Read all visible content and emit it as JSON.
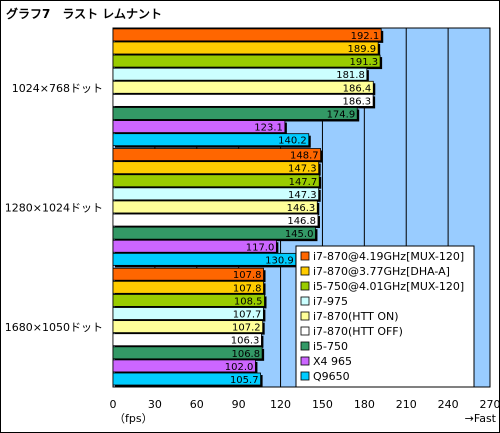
{
  "chart_data": {
    "type": "bar",
    "orientation": "horizontal",
    "title": "グラフ7　ラスト レムナント",
    "categories": [
      "1024×768ドット",
      "1280×1024ドット",
      "1680×1050ドット"
    ],
    "series": [
      {
        "name": "i7-870@4.19GHz[MUX-120]",
        "color": "#ff6600",
        "values": [
          192.1,
          148.7,
          107.8
        ]
      },
      {
        "name": "i7-870@3.77GHz[DHA-A]",
        "color": "#ffcc00",
        "values": [
          189.9,
          147.3,
          107.8
        ]
      },
      {
        "name": "i5-750@4.01GHz[MUX-120]",
        "color": "#99cc00",
        "values": [
          191.3,
          147.7,
          108.5
        ]
      },
      {
        "name": "i7-975",
        "color": "#ccffff",
        "values": [
          181.8,
          147.3,
          107.7
        ]
      },
      {
        "name": "i7-870(HTT ON)",
        "color": "#ffff99",
        "values": [
          186.4,
          146.3,
          107.2
        ]
      },
      {
        "name": "i7-870(HTT OFF)",
        "color": "#ffffff",
        "values": [
          186.3,
          146.8,
          106.3
        ]
      },
      {
        "name": "i5-750",
        "color": "#339966",
        "values": [
          174.9,
          145.0,
          106.8
        ]
      },
      {
        "name": "X4 965",
        "color": "#cc66ff",
        "values": [
          123.1,
          117.0,
          102.0
        ]
      },
      {
        "name": "Q9650",
        "color": "#00ccff",
        "values": [
          140.2,
          130.9,
          105.7
        ]
      }
    ],
    "xlim": [
      0,
      270
    ],
    "xticks": [
      0,
      30,
      60,
      90,
      120,
      150,
      180,
      210,
      240,
      270
    ],
    "xlabel_left": "（fps）",
    "xlabel_right": "→Fast",
    "grid": true,
    "plot_background": "#99ccff",
    "legend_position": "inside-bottom-right"
  }
}
